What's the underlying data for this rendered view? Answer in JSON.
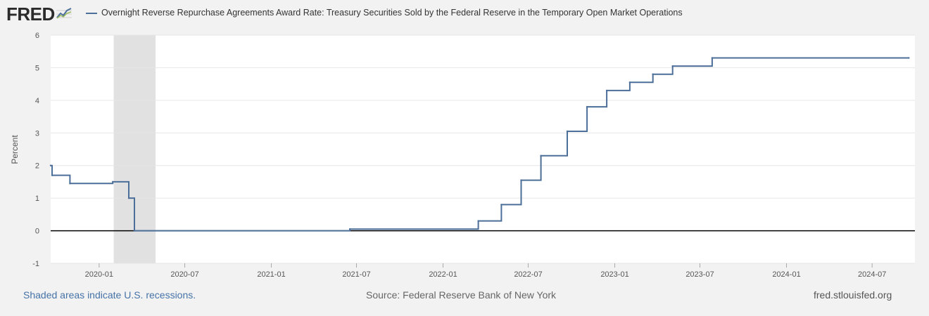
{
  "header": {
    "logo_text": "FRED",
    "series_title": "Overnight Reverse Repurchase Agreements Award Rate: Treasury Securities Sold by the Federal Reserve in the Temporary Open Market Operations"
  },
  "footer": {
    "note": "Shaded areas indicate U.S. recessions.",
    "source": "Source: Federal Reserve Bank of New York",
    "site": "fred.stlouisfed.org"
  },
  "colors": {
    "series": "#4c6f99",
    "recession": "#e1e1e1",
    "zero_line": "#000000"
  },
  "chart_data": {
    "type": "line",
    "title": "Overnight Reverse Repurchase Agreements Award Rate: Treasury Securities Sold by the Federal Reserve in the Temporary Open Market Operations",
    "xlabel": "",
    "ylabel": "Percent",
    "ylim": [
      -1,
      6
    ],
    "xlim": [
      "2019-09-20",
      "2024-09-30"
    ],
    "yticks": [
      -1,
      0,
      1,
      2,
      3,
      4,
      5,
      6
    ],
    "xticks": [
      "2020-01",
      "2020-07",
      "2021-01",
      "2021-07",
      "2022-01",
      "2022-07",
      "2023-01",
      "2023-07",
      "2024-01",
      "2024-07"
    ],
    "recessions": [
      [
        "2020-02-01",
        "2020-04-30"
      ]
    ],
    "zero_line": 0,
    "series": [
      {
        "name": "Overnight Reverse Repurchase Agreements Award Rate",
        "step": true,
        "points": [
          [
            "2019-09-20",
            2.0
          ],
          [
            "2019-09-23",
            1.7
          ],
          [
            "2019-10-31",
            1.45
          ],
          [
            "2020-01-30",
            1.5
          ],
          [
            "2020-03-04",
            1.0
          ],
          [
            "2020-03-16",
            0.0
          ],
          [
            "2021-06-17",
            0.05
          ],
          [
            "2022-03-17",
            0.3
          ],
          [
            "2022-05-05",
            0.8
          ],
          [
            "2022-06-16",
            1.55
          ],
          [
            "2022-07-28",
            2.3
          ],
          [
            "2022-09-22",
            3.05
          ],
          [
            "2022-11-03",
            3.8
          ],
          [
            "2022-12-15",
            4.3
          ],
          [
            "2023-02-02",
            4.55
          ],
          [
            "2023-03-23",
            4.8
          ],
          [
            "2023-05-04",
            5.05
          ],
          [
            "2023-07-27",
            5.3
          ],
          [
            "2024-09-17",
            5.3
          ]
        ]
      }
    ]
  }
}
